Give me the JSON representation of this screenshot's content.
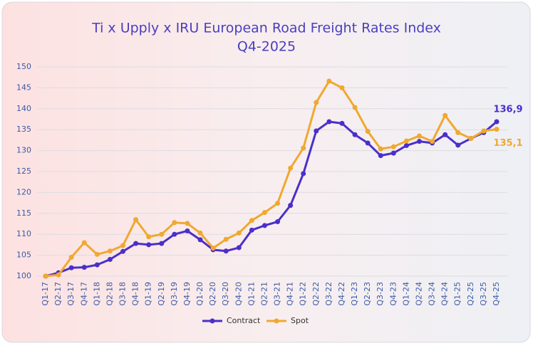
{
  "chart_data": {
    "type": "line",
    "title": "Ti x Upply x IRU European Road Freight Rates Index",
    "subtitle": "Q4-2025",
    "categories": [
      "Q1-17",
      "Q2-17",
      "Q3-17",
      "Q4-17",
      "Q1-18",
      "Q2-18",
      "Q3-18",
      "Q4-18",
      "Q1-19",
      "Q2-19",
      "Q3-19",
      "Q4-19",
      "Q1-20",
      "Q2-20",
      "Q3-20",
      "Q4-20",
      "Q1-21",
      "Q2-21",
      "Q3-21",
      "Q4-21",
      "Q1-22",
      "Q2-22",
      "Q3-22",
      "Q4-22",
      "Q1-23",
      "Q2-23",
      "Q3-23",
      "Q4-23",
      "Q1-24",
      "Q2-24",
      "Q3-24",
      "Q4-24",
      "Q1-25",
      "Q2-25",
      "Q3-25",
      "Q4-25"
    ],
    "series": [
      {
        "name": "Contract",
        "color": "#4b2fc9",
        "values": [
          100,
          100.8,
          102,
          102.1,
          102.7,
          104,
          105.9,
          107.8,
          107.5,
          107.8,
          110,
          110.8,
          108.7,
          106.3,
          106,
          106.8,
          111,
          112.1,
          113,
          116.9,
          124.5,
          134.7,
          136.9,
          136.5,
          133.8,
          131.8,
          128.8,
          129.4,
          131.2,
          132.2,
          131.8,
          133.8,
          131.3,
          132.9,
          134.3,
          136.9
        ],
        "value_labels": [
          null,
          null,
          null,
          null,
          null,
          null,
          null,
          null,
          null,
          null,
          null,
          null,
          null,
          null,
          null,
          null,
          null,
          null,
          null,
          null,
          null,
          null,
          null,
          null,
          null,
          null,
          null,
          null,
          null,
          null,
          null,
          null,
          null,
          null,
          null,
          "136,9"
        ]
      },
      {
        "name": "Spot",
        "color": "#f0a830",
        "values": [
          100,
          100.3,
          104.5,
          108,
          105.2,
          106,
          107.3,
          113.5,
          109.4,
          110,
          112.8,
          112.6,
          110.3,
          106.7,
          108.8,
          110.3,
          113.3,
          115.2,
          117.4,
          125.8,
          130.6,
          141.5,
          146.6,
          145,
          140.3,
          134.6,
          130.4,
          130.9,
          132.3,
          133.5,
          132.2,
          138.4,
          134.3,
          132.9,
          134.7,
          135.1
        ],
        "value_labels": [
          null,
          null,
          null,
          null,
          null,
          null,
          null,
          null,
          null,
          null,
          null,
          null,
          null,
          null,
          null,
          null,
          null,
          null,
          null,
          null,
          null,
          null,
          null,
          null,
          null,
          null,
          null,
          null,
          null,
          null,
          null,
          null,
          null,
          null,
          null,
          "135,1"
        ]
      }
    ],
    "ylim": [
      100,
      150
    ],
    "yticks": [
      100,
      105,
      110,
      115,
      120,
      125,
      130,
      135,
      140,
      145,
      150
    ],
    "grid": true,
    "legend": "bottom"
  }
}
